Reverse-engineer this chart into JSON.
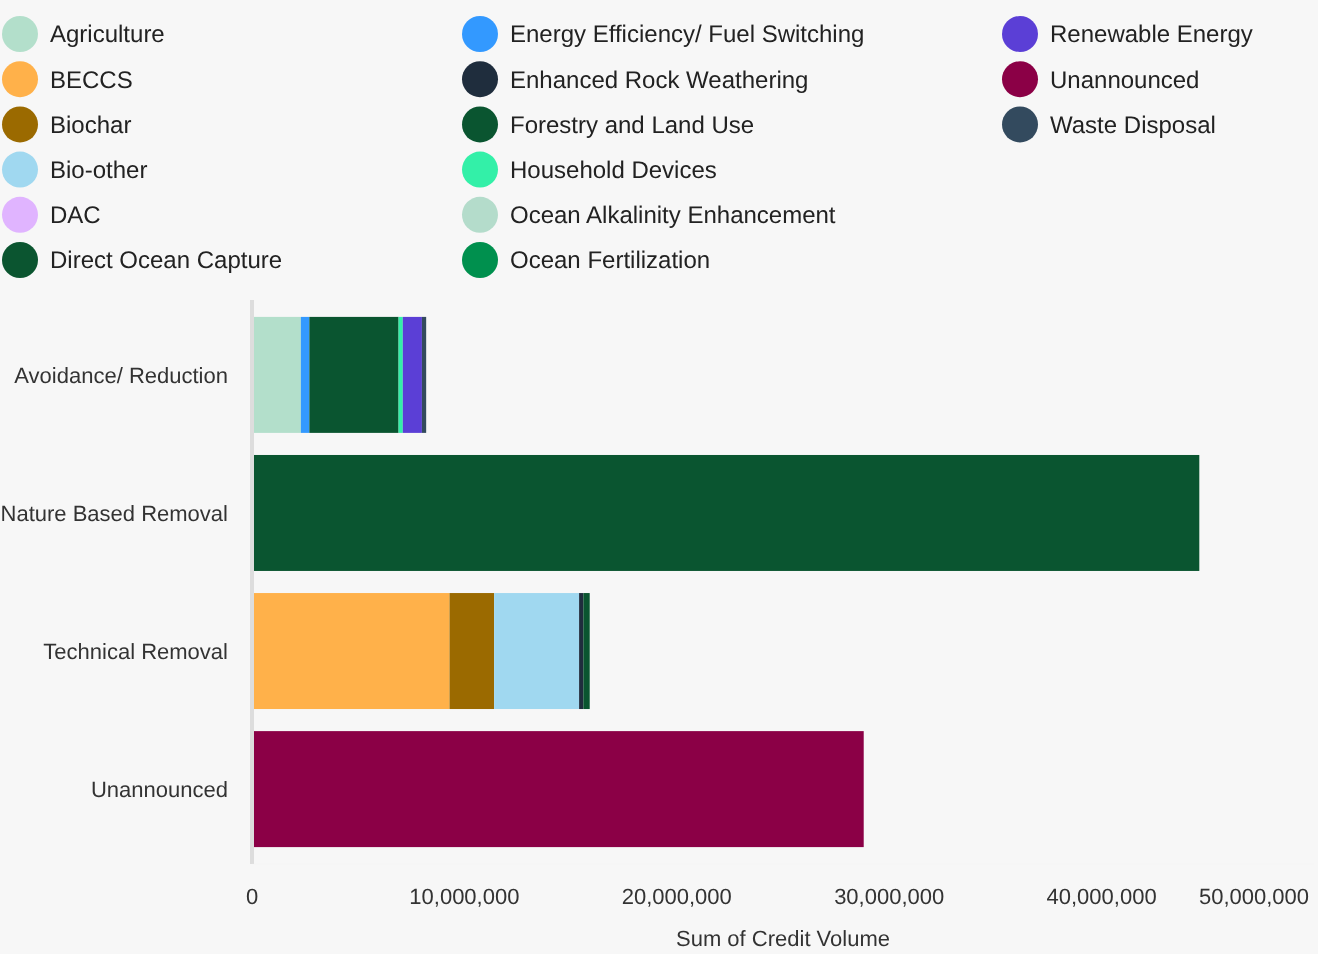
{
  "chart_data": {
    "type": "bar",
    "orientation": "horizontal",
    "stacked": true,
    "xlabel": "Sum of Credit Volume",
    "legend": "top",
    "grid": false,
    "categories": [
      "Avoidance/ Reduction",
      "Nature Based Removal",
      "Technical Removal",
      "Unannounced"
    ],
    "xlim": [
      0,
      50000000
    ],
    "xticks": [
      0,
      {
        "value": 10000000,
        "label": "10,000,000"
      },
      {
        "value": 20000000,
        "label": "20,000,000"
      },
      {
        "value": 30000000,
        "label": "30,000,000"
      },
      {
        "value": 40000000,
        "label": "40,000,000"
      },
      {
        "value": 50000000,
        "label": "50,000,000"
      }
    ],
    "series": [
      {
        "name": "Agriculture",
        "color": "#b3dfcb",
        "values": [
          2300000,
          null,
          null,
          null
        ]
      },
      {
        "name": "BECCS",
        "color": "#ffb14a",
        "values": [
          null,
          null,
          9300000,
          null
        ]
      },
      {
        "name": "Biochar",
        "color": "#9b6a00",
        "values": [
          null,
          null,
          2100000,
          null
        ]
      },
      {
        "name": "Bio-other",
        "color": "#a0d8f0",
        "values": [
          null,
          null,
          4000000,
          null
        ]
      },
      {
        "name": "DAC",
        "color": "#e0b4ff",
        "values": [
          null,
          null,
          null,
          null
        ]
      },
      {
        "name": "Direct Ocean Capture",
        "color": "#0b5530",
        "values": [
          null,
          null,
          null,
          null
        ]
      },
      {
        "name": "Energy Efficiency/ Fuel Switching",
        "color": "#3399ff",
        "values": [
          400000,
          null,
          null,
          null
        ]
      },
      {
        "name": "Enhanced Rock Weathering",
        "color": "#1f2d3d",
        "values": [
          null,
          null,
          200000,
          null
        ]
      },
      {
        "name": "Forestry and Land Use",
        "color": "#0a5530",
        "values": [
          4200000,
          44600000,
          300000,
          null
        ]
      },
      {
        "name": "Household Devices",
        "color": "#33f0a8",
        "values": [
          200000,
          null,
          null,
          null
        ]
      },
      {
        "name": "Ocean Alkalinity Enhancement",
        "color": "#b4dccb",
        "values": [
          null,
          null,
          null,
          null
        ]
      },
      {
        "name": "Ocean Fertilization",
        "color": "#00904e",
        "values": [
          null,
          null,
          null,
          null
        ]
      },
      {
        "name": "Renewable Energy",
        "color": "#5b3fd6",
        "values": [
          900000,
          null,
          null,
          null
        ]
      },
      {
        "name": "Unannounced",
        "color": "#8b0046",
        "values": [
          null,
          null,
          null,
          28800000
        ]
      },
      {
        "name": "Waste Disposal",
        "color": "#334a5e",
        "values": [
          200000,
          null,
          null,
          null
        ]
      }
    ]
  }
}
